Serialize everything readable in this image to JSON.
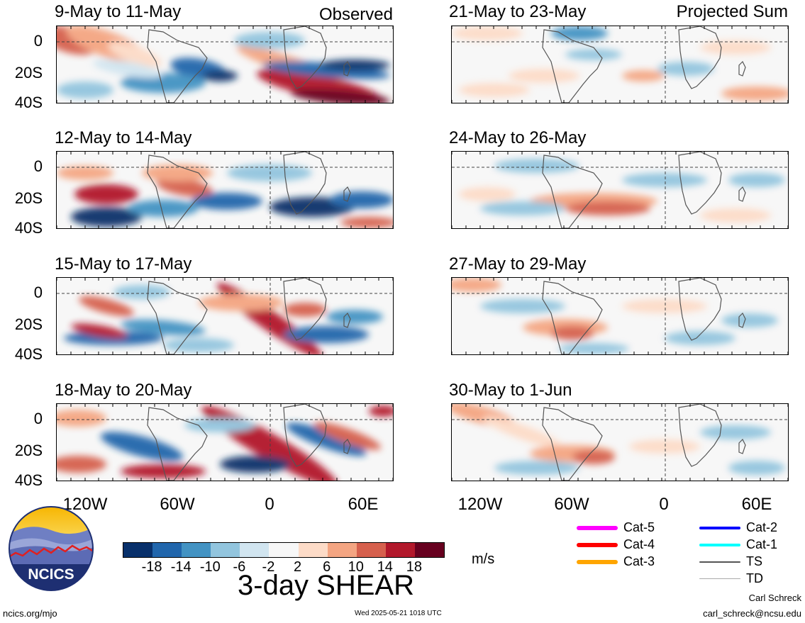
{
  "panels": [
    {
      "title": "9-May to 11-May",
      "tag": "Observed",
      "pattern": "p1"
    },
    {
      "title": "21-May to 23-May",
      "tag": "Projected Sum",
      "pattern": "p5"
    },
    {
      "title": "12-May to 14-May",
      "tag": "",
      "pattern": "p2"
    },
    {
      "title": "24-May to 26-May",
      "tag": "",
      "pattern": "p6"
    },
    {
      "title": "15-May to 17-May",
      "tag": "",
      "pattern": "p3"
    },
    {
      "title": "27-May to 29-May",
      "tag": "",
      "pattern": "p7"
    },
    {
      "title": "18-May to 20-May",
      "tag": "",
      "pattern": "p4"
    },
    {
      "title": "30-May to 1-Jun",
      "tag": "",
      "pattern": "p8"
    }
  ],
  "lat_labels": [
    "0",
    "20S",
    "40S"
  ],
  "lon_labels": [
    "120W",
    "60W",
    "0",
    "60E"
  ],
  "colorbar": {
    "colors": [
      "#08306b",
      "#2166ac",
      "#4393c3",
      "#92c5de",
      "#d1e5f0",
      "#f7f7f7",
      "#fddbc7",
      "#f4a582",
      "#d6604d",
      "#b2182b",
      "#67001f"
    ],
    "ticks": [
      "-18",
      "-14",
      "-10",
      "-6",
      "-2",
      "2",
      "6",
      "10",
      "14",
      "18"
    ],
    "title": "3-day SHEAR",
    "units": "m/s"
  },
  "legend": [
    {
      "label": "Cat-5",
      "color": "#ff00ff",
      "width": 6
    },
    {
      "label": "Cat-4",
      "color": "#ff0000",
      "width": 6
    },
    {
      "label": "Cat-3",
      "color": "#ffa500",
      "width": 6
    },
    {
      "label": "Cat-2",
      "color": "#0000ff",
      "width": 4
    },
    {
      "label": "Cat-1",
      "color": "#00ffff",
      "width": 4
    },
    {
      "label": "TS",
      "color": "#555555",
      "width": 2
    },
    {
      "label": "TD",
      "color": "#aaaaaa",
      "width": 1
    }
  ],
  "logo": {
    "text": "NCICS"
  },
  "footer": {
    "url": "ncics.org/mjo",
    "timestamp": "Wed 2025-05-21 1018 UTC",
    "author": "Carl Schreck",
    "email": "carl_schreck@ncsu.edu"
  }
}
